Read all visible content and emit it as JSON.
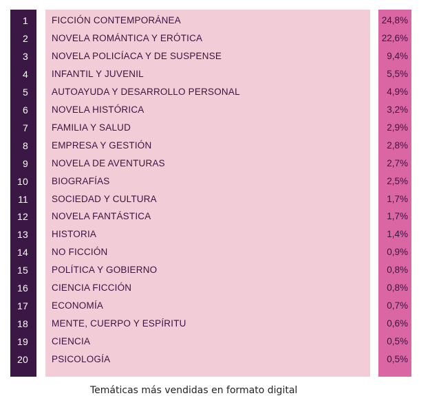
{
  "chart_data": {
    "type": "table",
    "title": "",
    "caption": "Temáticas más vendidas en formato digital",
    "columns": [
      "",
      "",
      ""
    ],
    "rows": [
      {
        "rank": "1",
        "name": "FICCIÓN CONTEMPORÁNEA",
        "percent": "24,8%",
        "value": 24.8
      },
      {
        "rank": "2",
        "name": "NOVELA ROMÁNTICA Y ERÓTICA",
        "percent": "22,6%",
        "value": 22.6
      },
      {
        "rank": "3",
        "name": "NOVELA POLICÍACA Y DE SUSPENSE",
        "percent": "9,4%",
        "value": 9.4
      },
      {
        "rank": "4",
        "name": "INFANTIL Y JUVENIL",
        "percent": "5,5%",
        "value": 5.5
      },
      {
        "rank": "5",
        "name": "AUTOAYUDA Y DESARROLLO PERSONAL",
        "percent": "4,9%",
        "value": 4.9
      },
      {
        "rank": "6",
        "name": "NOVELA HISTÓRICA",
        "percent": "3,2%",
        "value": 3.2
      },
      {
        "rank": "7",
        "name": "FAMILIA Y SALUD",
        "percent": "2,9%",
        "value": 2.9
      },
      {
        "rank": "8",
        "name": "EMPRESA Y GESTIÓN",
        "percent": "2,8%",
        "value": 2.8
      },
      {
        "rank": "9",
        "name": "NOVELA DE AVENTURAS",
        "percent": "2,7%",
        "value": 2.7
      },
      {
        "rank": "10",
        "name": "BIOGRAFÍAS",
        "percent": "2,5%",
        "value": 2.5
      },
      {
        "rank": "11",
        "name": "SOCIEDAD Y CULTURA",
        "percent": "1,7%",
        "value": 1.7
      },
      {
        "rank": "12",
        "name": "NOVELA FANTÁSTICA",
        "percent": "1,7%",
        "value": 1.7
      },
      {
        "rank": "13",
        "name": "HISTORIA",
        "percent": "1,4%",
        "value": 1.4
      },
      {
        "rank": "14",
        "name": "NO FICCIÓN",
        "percent": "0,9%",
        "value": 0.9
      },
      {
        "rank": "15",
        "name": "POLÍTICA Y GOBIERNO",
        "percent": "0,8%",
        "value": 0.8
      },
      {
        "rank": "16",
        "name": "CIENCIA FICCIÓN",
        "percent": "0,8%",
        "value": 0.8
      },
      {
        "rank": "17",
        "name": "ECONOMÍA",
        "percent": "0,7%",
        "value": 0.7
      },
      {
        "rank": "18",
        "name": "MENTE, CUERPO Y ESPÍRITU",
        "percent": "0,6%",
        "value": 0.6
      },
      {
        "rank": "19",
        "name": "CIENCIA",
        "percent": "0,5%",
        "value": 0.5
      },
      {
        "rank": "20",
        "name": "PSICOLOGÍA",
        "percent": "0,5%",
        "value": 0.5
      }
    ]
  },
  "colors": {
    "rank_column": "#3b1746",
    "name_column": "#f2ccd6",
    "percent_column": "#da66a4",
    "text": "#3a1540"
  }
}
